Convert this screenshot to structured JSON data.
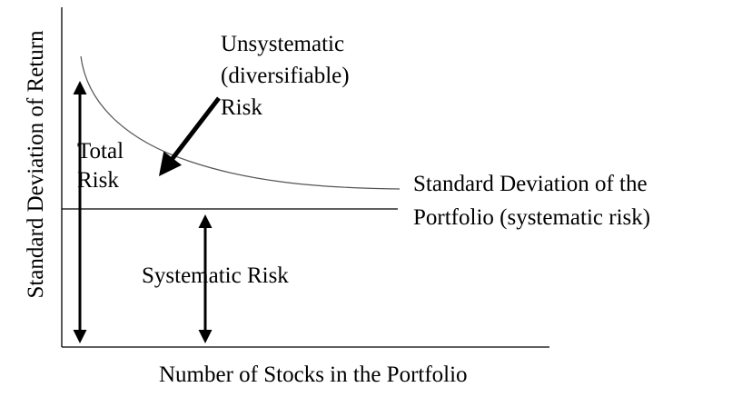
{
  "diagram": {
    "y_axis_label": "Standard Deviation of Return",
    "x_axis_label": "Number of Stocks in the Portfolio",
    "unsystematic_label": [
      "Unsystematic",
      "(diversifiable)",
      "Risk"
    ],
    "total_risk_label": [
      "Total",
      "Risk"
    ],
    "curve_label": [
      "Standard Deviation of the",
      "Portfolio (systematic risk)"
    ],
    "systematic_label": "Systematic Risk",
    "line_color": "#000000",
    "curve_color": "#555555"
  }
}
